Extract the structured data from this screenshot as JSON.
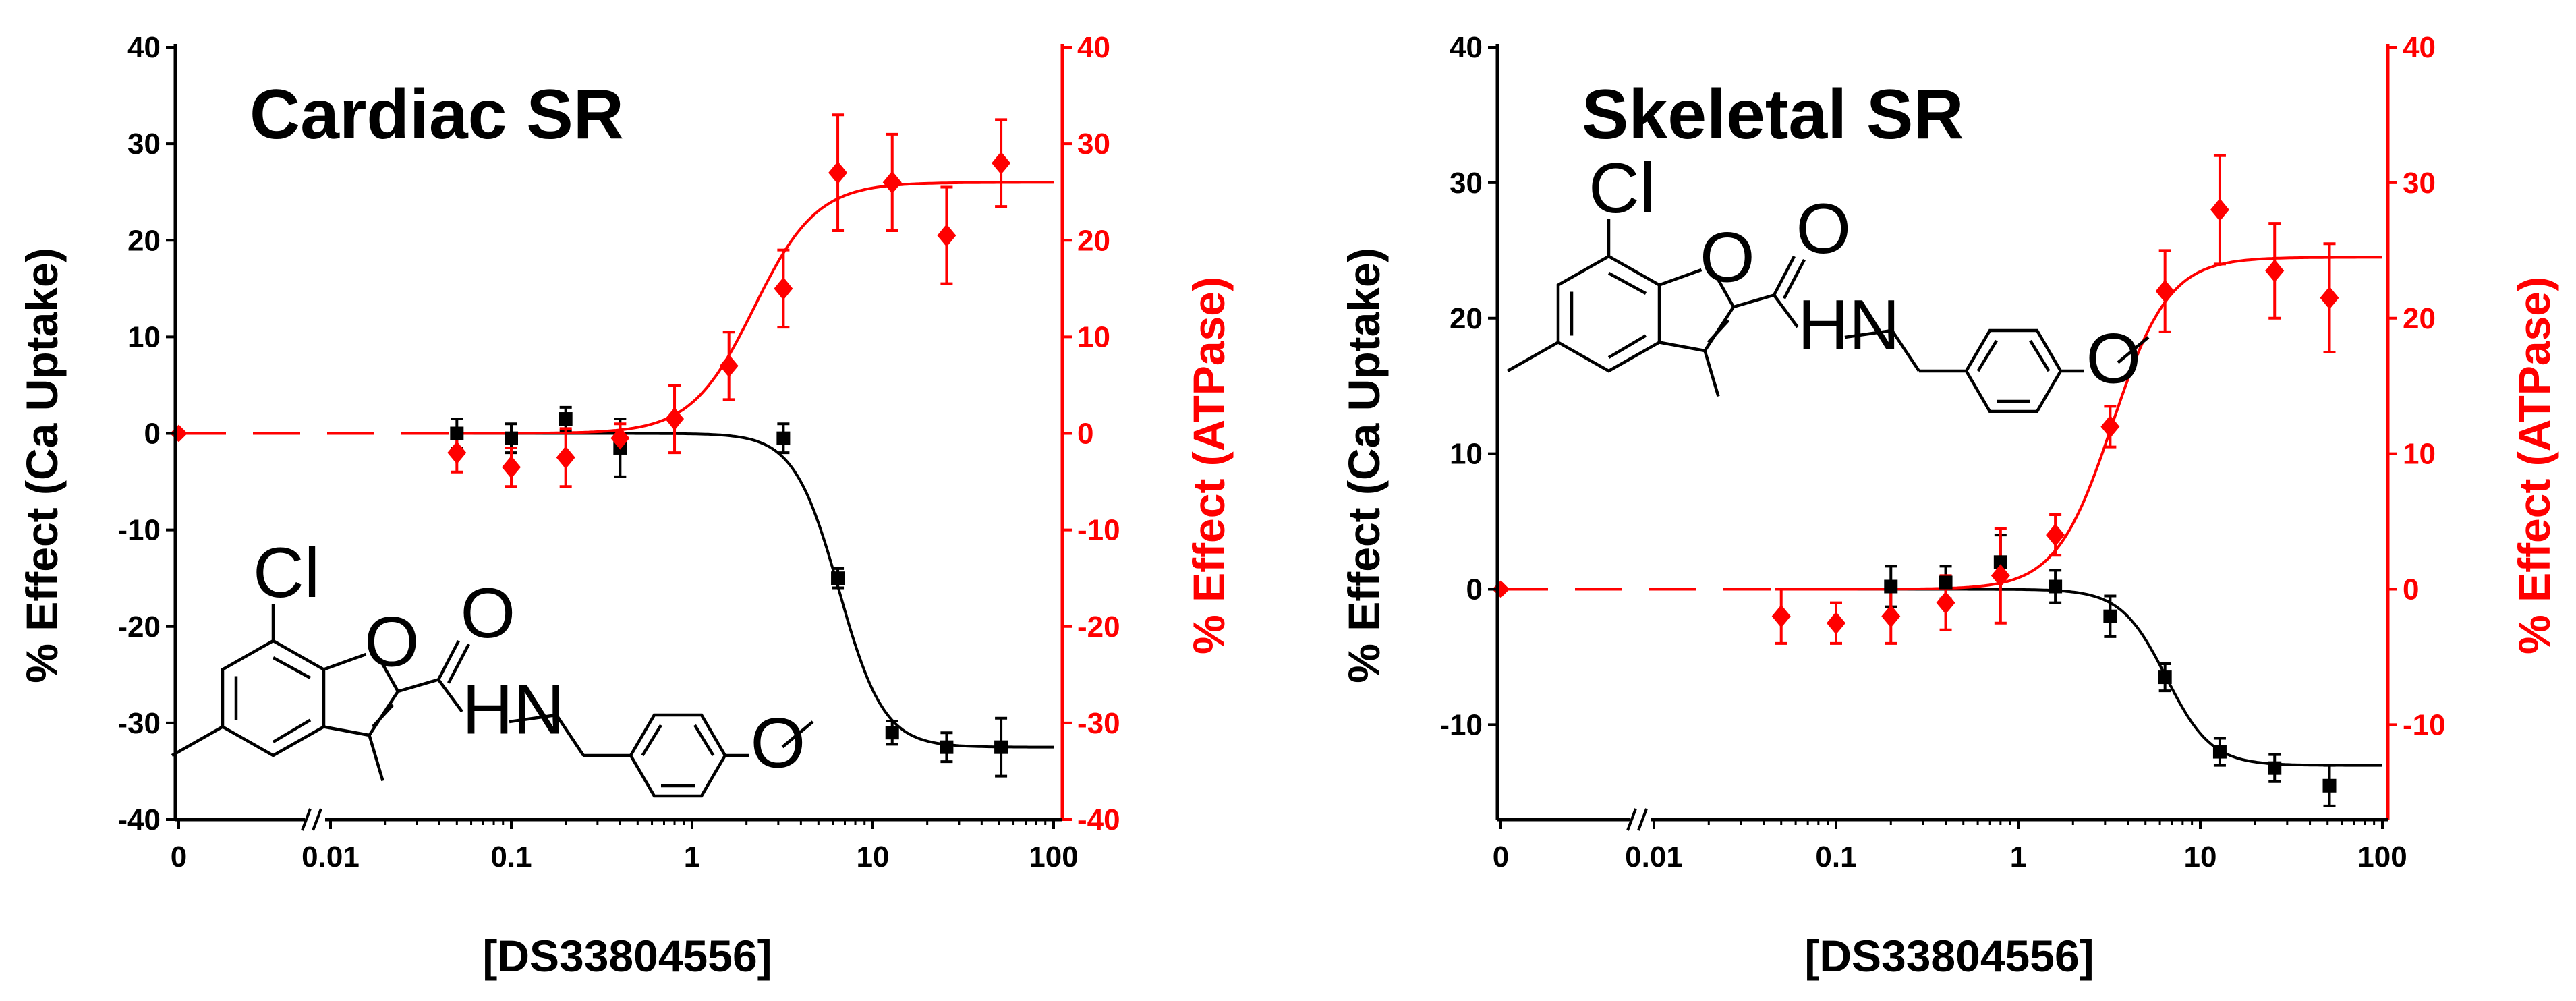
{
  "chart_data": [
    {
      "type": "scatter",
      "title": "Cardiac SR",
      "xlabel": "[DS33804556]",
      "ylabel_left": "% Effect (Ca Uptake)",
      "ylabel_right": "% Effect (ATPase)",
      "x_scale": "log",
      "x_ticks": [
        "0",
        "0.01",
        "0.1",
        "1",
        "10",
        "100"
      ],
      "left_ticks": [
        "40",
        "30",
        "20",
        "10",
        "0",
        "-10",
        "-20",
        "-30",
        "-40"
      ],
      "right_ticks": [
        "40",
        "30",
        "20",
        "10",
        "0",
        "-10",
        "-20",
        "-30",
        "-40"
      ],
      "ylim_left": [
        -40,
        40
      ],
      "ylim_right": [
        -40,
        40
      ],
      "series": [
        {
          "name": "Ca Uptake",
          "color": "#000000",
          "marker": "square",
          "axis": "left",
          "x": [
            0.05,
            0.1,
            0.2,
            0.4,
            3.2,
            6.4,
            12.8,
            25.6,
            51.2
          ],
          "y": [
            0,
            -0.5,
            1.5,
            -1.5,
            -0.5,
            -15,
            -31,
            -32.5,
            -32.5
          ],
          "err": [
            1.5,
            1.5,
            1.2,
            3,
            1.5,
            1,
            1.2,
            1.5,
            3
          ],
          "fit": {
            "bottom": 0,
            "top": -32.5,
            "ec50": 6.5,
            "hill": 3.5
          }
        },
        {
          "name": "ATPase",
          "color": "#ff0000",
          "marker": "diamond",
          "axis": "right",
          "x": [
            0.05,
            0.1,
            0.2,
            0.4,
            0.8,
            1.6,
            3.2,
            6.4,
            12.8,
            25.6,
            51.2
          ],
          "y": [
            -2,
            -3.5,
            -2.5,
            -0.5,
            1.5,
            7,
            15,
            27,
            26,
            20.5,
            28
          ],
          "err": [
            2,
            2,
            3,
            1.5,
            3.5,
            3.5,
            4,
            6,
            5,
            5,
            4.5
          ],
          "fit": {
            "bottom": 0,
            "top": 26,
            "ec50": 2.2,
            "hill": 2.5
          }
        }
      ],
      "zero_point": {
        "x": "0",
        "y": 0
      }
    },
    {
      "type": "scatter",
      "title": "Skeletal SR",
      "xlabel": "[DS33804556]",
      "ylabel_left": "% Effect (Ca Uptake)",
      "ylabel_right": "% Effect (ATPase)",
      "x_scale": "log",
      "x_ticks": [
        "0",
        "0.01",
        "0.1",
        "1",
        "10",
        "100"
      ],
      "left_ticks": [
        "40",
        "30",
        "20",
        "10",
        "0",
        "-10"
      ],
      "right_ticks": [
        "40",
        "30",
        "20",
        "10",
        "0",
        "-10"
      ],
      "ylim_left": [
        -17,
        40
      ],
      "ylim_right": [
        -17,
        40
      ],
      "series": [
        {
          "name": "Ca Uptake",
          "color": "#000000",
          "marker": "square",
          "axis": "left",
          "x": [
            0.2,
            0.4,
            0.8,
            1.6,
            3.2,
            6.4,
            12.8,
            25.6,
            51.2
          ],
          "y": [
            0.2,
            0.5,
            2,
            0.2,
            -2,
            -6.5,
            -12,
            -13.2,
            -14.5
          ],
          "err": [
            1.5,
            1.2,
            2,
            1.2,
            1.5,
            1,
            1,
            1,
            1.5
          ],
          "fit": {
            "bottom": 0,
            "top": -13,
            "ec50": 6.5,
            "hill": 3.5
          }
        },
        {
          "name": "ATPase",
          "color": "#ff0000",
          "marker": "diamond",
          "axis": "right",
          "x": [
            0.05,
            0.1,
            0.2,
            0.4,
            0.8,
            1.6,
            3.2,
            6.4,
            12.8,
            25.6,
            51.2
          ],
          "y": [
            -2,
            -2.5,
            -2,
            -1,
            1,
            4,
            12,
            22,
            28,
            23.5,
            21.5
          ],
          "err": [
            2,
            1.5,
            2,
            2,
            3.5,
            1.5,
            1.5,
            3,
            4,
            3.5,
            4
          ],
          "fit": {
            "bottom": 0,
            "top": 24.5,
            "ec50": 3.3,
            "hill": 2.8
          }
        }
      ],
      "zero_point": {
        "x": "0",
        "y": 0
      }
    }
  ],
  "structure_labels": {
    "chlorine": "Cl",
    "oxygen": "O",
    "amide_nh": "HN"
  }
}
